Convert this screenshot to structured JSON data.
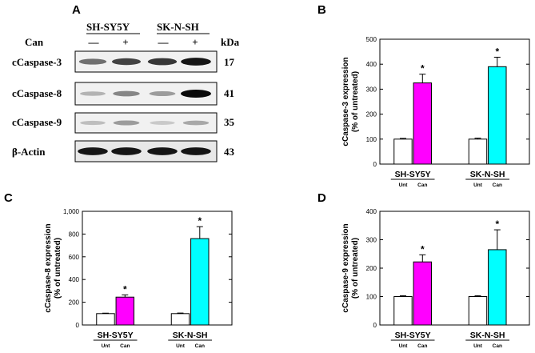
{
  "panels": {
    "A": "A",
    "B": "B",
    "C": "C",
    "D": "D"
  },
  "blot": {
    "cell_lines": [
      "SH-SY5Y",
      "SK-N-SH"
    ],
    "treatment_label": "Can",
    "treatment_color": "#1f3fbf",
    "treatment_marks": [
      "—",
      "+",
      "—",
      "+"
    ],
    "kda_header": "kDa",
    "rows": [
      {
        "name": "cCaspase-3",
        "kda": "17",
        "intensity": [
          0.55,
          0.75,
          0.8,
          0.95
        ]
      },
      {
        "name": "cCaspase-8",
        "kda": "41",
        "intensity": [
          0.25,
          0.45,
          0.35,
          1.0
        ]
      },
      {
        "name": "cCaspase-9",
        "kda": "35",
        "intensity": [
          0.2,
          0.35,
          0.15,
          0.3
        ]
      },
      {
        "name": "β-Actin",
        "kda": "43",
        "intensity": [
          0.95,
          0.95,
          0.95,
          0.95
        ]
      }
    ]
  },
  "chart_data": [
    {
      "panel": "B",
      "type": "bar",
      "ylabel_line1": "cCaspase-3 expression",
      "ylabel_line2": "(% of untreated)",
      "ylim": [
        0,
        500
      ],
      "yticks": [
        "0",
        "100",
        "200",
        "300",
        "400",
        "500"
      ],
      "ytick_values": [
        0,
        100,
        200,
        300,
        400,
        500
      ],
      "groups": [
        "SH-SY5Y",
        "SK-N-SH"
      ],
      "conditions": [
        "Unt",
        "Can"
      ],
      "bars": [
        {
          "group": "SH-SY5Y",
          "condition": "Unt",
          "value": 100,
          "error": 3,
          "color": "#ffffff",
          "star": ""
        },
        {
          "group": "SH-SY5Y",
          "condition": "Can",
          "value": 325,
          "error": 35,
          "color": "#ff00ff",
          "star": "*"
        },
        {
          "group": "SK-N-SH",
          "condition": "Unt",
          "value": 100,
          "error": 4,
          "color": "#ffffff",
          "star": ""
        },
        {
          "group": "SK-N-SH",
          "condition": "Can",
          "value": 390,
          "error": 38,
          "color": "#00ffff",
          "star": "*"
        }
      ]
    },
    {
      "panel": "C",
      "type": "bar",
      "ylabel_line1": "cCaspase-8 expression",
      "ylabel_line2": "(% of untreated)",
      "ylim": [
        0,
        1000
      ],
      "yticks": [
        "0",
        "200",
        "400",
        "600",
        "800",
        "1,000"
      ],
      "ytick_values": [
        0,
        200,
        400,
        600,
        800,
        1000
      ],
      "groups": [
        "SH-SY5Y",
        "SK-N-SH"
      ],
      "conditions": [
        "Unt",
        "Can"
      ],
      "bars": [
        {
          "group": "SH-SY5Y",
          "condition": "Unt",
          "value": 100,
          "error": 4,
          "color": "#ffffff",
          "star": ""
        },
        {
          "group": "SH-SY5Y",
          "condition": "Can",
          "value": 245,
          "error": 20,
          "color": "#ff00ff",
          "star": "*"
        },
        {
          "group": "SK-N-SH",
          "condition": "Unt",
          "value": 100,
          "error": 5,
          "color": "#ffffff",
          "star": ""
        },
        {
          "group": "SK-N-SH",
          "condition": "Can",
          "value": 760,
          "error": 105,
          "color": "#00ffff",
          "star": "*"
        }
      ]
    },
    {
      "panel": "D",
      "type": "bar",
      "ylabel_line1": "cCaspase-9 expression",
      "ylabel_line2": "(% of untreated)",
      "ylim": [
        0,
        400
      ],
      "yticks": [
        "0",
        "100",
        "200",
        "300",
        "400"
      ],
      "ytick_values": [
        0,
        100,
        200,
        300,
        400
      ],
      "groups": [
        "SH-SY5Y",
        "SK-N-SH"
      ],
      "conditions": [
        "Unt",
        "Can"
      ],
      "bars": [
        {
          "group": "SH-SY5Y",
          "condition": "Unt",
          "value": 100,
          "error": 3,
          "color": "#ffffff",
          "star": ""
        },
        {
          "group": "SH-SY5Y",
          "condition": "Can",
          "value": 222,
          "error": 25,
          "color": "#ff00ff",
          "star": "*"
        },
        {
          "group": "SK-N-SH",
          "condition": "Unt",
          "value": 100,
          "error": 3,
          "color": "#ffffff",
          "star": ""
        },
        {
          "group": "SK-N-SH",
          "condition": "Can",
          "value": 265,
          "error": 70,
          "color": "#00ffff",
          "star": "*"
        }
      ]
    }
  ]
}
